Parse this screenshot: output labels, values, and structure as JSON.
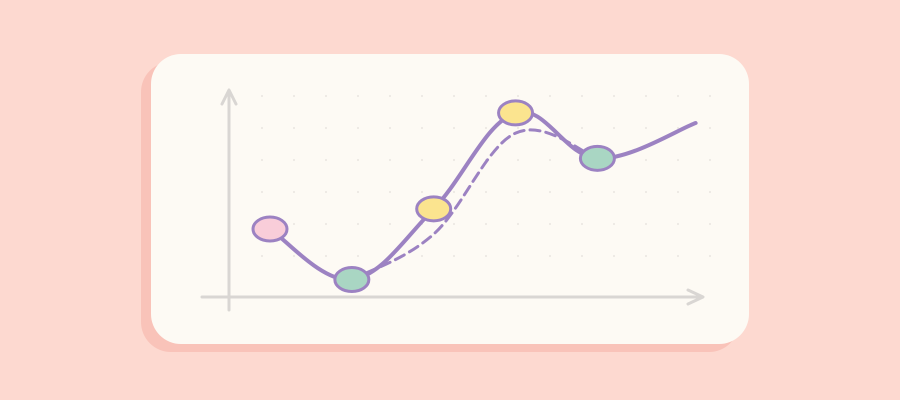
{
  "chart_data": {
    "type": "line",
    "title": "",
    "xlabel": "",
    "ylabel": "",
    "grid": true,
    "legend": "none",
    "xlim": [
      0,
      5.4
    ],
    "ylim": [
      0,
      10
    ],
    "series": [
      {
        "style": "solid",
        "color": "#9C82C2",
        "x": [
          0,
          1,
          2,
          3,
          4,
          5.2
        ],
        "y": [
          3.8,
          1.8,
          4.6,
          8.4,
          6.6,
          8.0
        ]
      },
      {
        "style": "dashed",
        "color": "#9C82C2",
        "x": [
          1,
          2,
          3,
          4
        ],
        "y": [
          1.8,
          3.6,
          7.6,
          6.6
        ]
      }
    ],
    "markers": [
      {
        "x": 0,
        "y": 3.8,
        "color": "#F9CDD9"
      },
      {
        "x": 1,
        "y": 1.8,
        "color": "#A9D6C3"
      },
      {
        "x": 2,
        "y": 4.6,
        "color": "#FBE48F"
      },
      {
        "x": 3,
        "y": 8.4,
        "color": "#FBE48F"
      },
      {
        "x": 4,
        "y": 6.6,
        "color": "#A9D6C3"
      }
    ]
  },
  "colors": {
    "background": "#FDD9D0",
    "card": "#FDFAF4",
    "card_shadow": "#F9C3B9",
    "axis": "#D9D6D3",
    "line": "#9C82C2",
    "marker_stroke": "#9C82C2"
  }
}
